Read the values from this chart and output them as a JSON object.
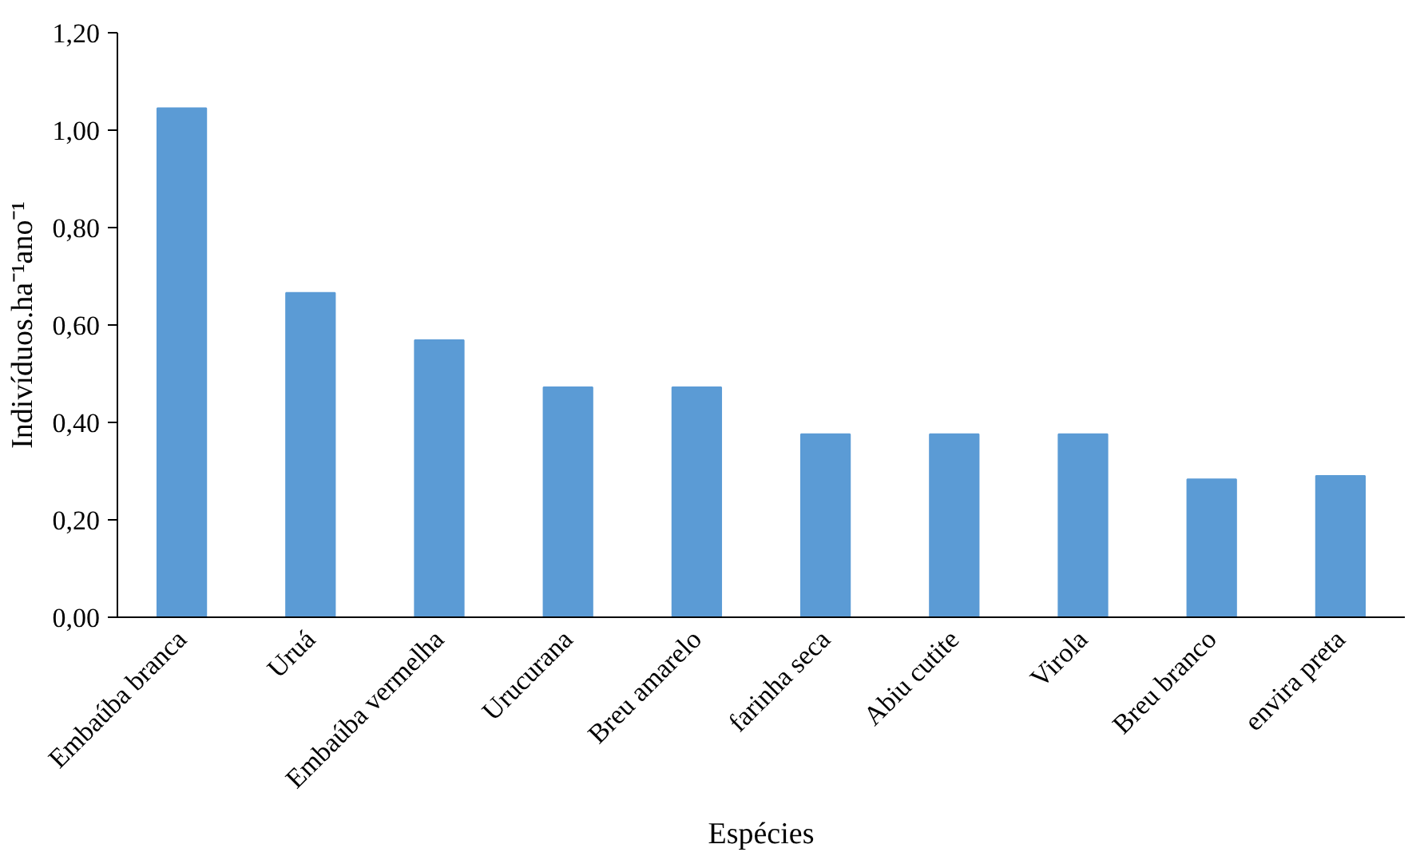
{
  "chart_data": {
    "type": "bar",
    "xlabel": "Espécies",
    "ylabel": "Indivíduos.ha⁻¹ano⁻¹",
    "categories": [
      "Embaúba branca",
      "Uruá",
      "Embaúba vermelha",
      "Urucurana",
      "Breu amarelo",
      "farinha seca",
      "Abiu cutite",
      "Virola",
      "Breu branco",
      "envira preta"
    ],
    "values": [
      1.045,
      0.666,
      0.569,
      0.472,
      0.472,
      0.376,
      0.376,
      0.376,
      0.283,
      0.29
    ],
    "color": "#5b9bd5",
    "ylim": [
      0,
      1.2
    ],
    "yticks": [
      {
        "value": 0,
        "label": "0,00"
      },
      {
        "value": 0.2,
        "label": "0,20"
      },
      {
        "value": 0.4,
        "label": "0,40"
      },
      {
        "value": 0.6,
        "label": "0,60"
      },
      {
        "value": 0.8,
        "label": "0,80"
      },
      {
        "value": 1.0,
        "label": "1,00"
      },
      {
        "value": 1.2,
        "label": "1,20"
      }
    ],
    "grid": false
  }
}
